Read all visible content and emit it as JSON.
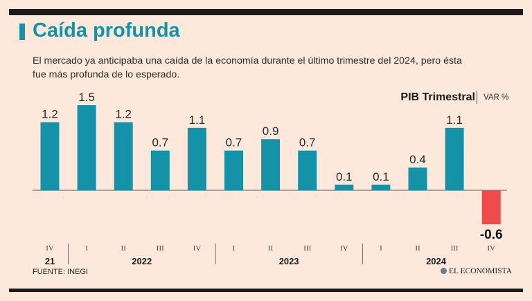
{
  "header": {
    "title": "Caída profunda",
    "subtitle": "El mercado ya anticipaba una caída de la economía durante el último trimestre del 2024, pero ésta fue más profunda de lo esperado."
  },
  "legend": {
    "title": "PIB Trimestral",
    "unit": "VAR %"
  },
  "footer": {
    "source": "FUENTE: INEGI",
    "brand": "EL ECONOMISTA"
  },
  "colors": {
    "positive": "#1492a8",
    "negative": "#f04b4b",
    "accent": "#1492a8"
  },
  "chart_data": {
    "type": "bar",
    "title": "PIB Trimestral",
    "ylabel": "VAR %",
    "categories": [
      "IV",
      "I",
      "II",
      "III",
      "IV",
      "I",
      "II",
      "III",
      "IV",
      "I",
      "II",
      "III",
      "IV"
    ],
    "value_labels": [
      "1.2",
      "1.5",
      "1.2",
      "0.7",
      "1.1",
      "0.7",
      "0.9",
      "0.7",
      "0.1",
      "0.1",
      "0.4",
      "1.1",
      "-0.6"
    ],
    "values": [
      1.2,
      1.5,
      1.2,
      0.7,
      1.1,
      0.7,
      0.9,
      0.7,
      0.1,
      0.1,
      0.4,
      1.1,
      -0.6
    ],
    "years": [
      {
        "label": "21",
        "start": 0,
        "end": 0
      },
      {
        "label": "2022",
        "start": 1,
        "end": 4
      },
      {
        "label": "2023",
        "start": 5,
        "end": 8
      },
      {
        "label": "2024",
        "start": 9,
        "end": 12
      }
    ],
    "ylim": [
      -0.6,
      1.5
    ]
  }
}
